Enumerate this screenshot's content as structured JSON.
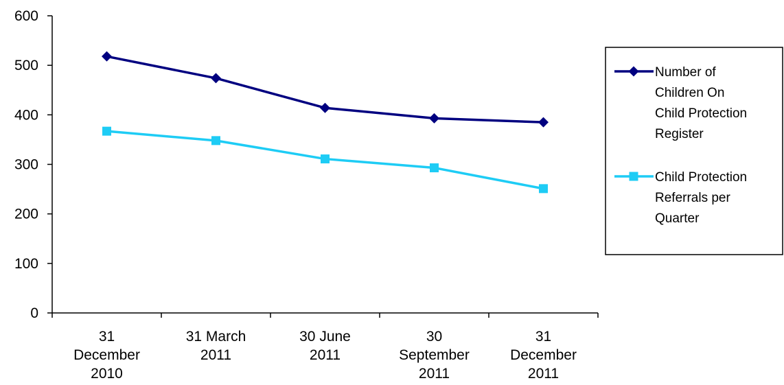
{
  "chart_data": {
    "type": "line",
    "categories": [
      [
        "31",
        "December",
        "2010"
      ],
      [
        "31 March",
        "2011"
      ],
      [
        "30 June",
        "2011"
      ],
      [
        "30",
        "September",
        "2011"
      ],
      [
        "31",
        "December",
        "2011"
      ]
    ],
    "series": [
      {
        "name": [
          "Number of",
          "Children On",
          "Child Protection",
          "Register"
        ],
        "values": [
          518,
          474,
          414,
          393,
          385
        ],
        "color": "#000080",
        "marker": "diamond"
      },
      {
        "name": [
          "Child Protection",
          "Referrals per",
          "Quarter"
        ],
        "values": [
          367,
          348,
          311,
          293,
          251
        ],
        "color": "#1ECCF5",
        "marker": "square"
      }
    ],
    "yticks": [
      "0",
      "100",
      "200",
      "300",
      "400",
      "500",
      "600"
    ],
    "ylim": [
      0,
      600
    ],
    "grid": false,
    "legend_position": "right"
  }
}
